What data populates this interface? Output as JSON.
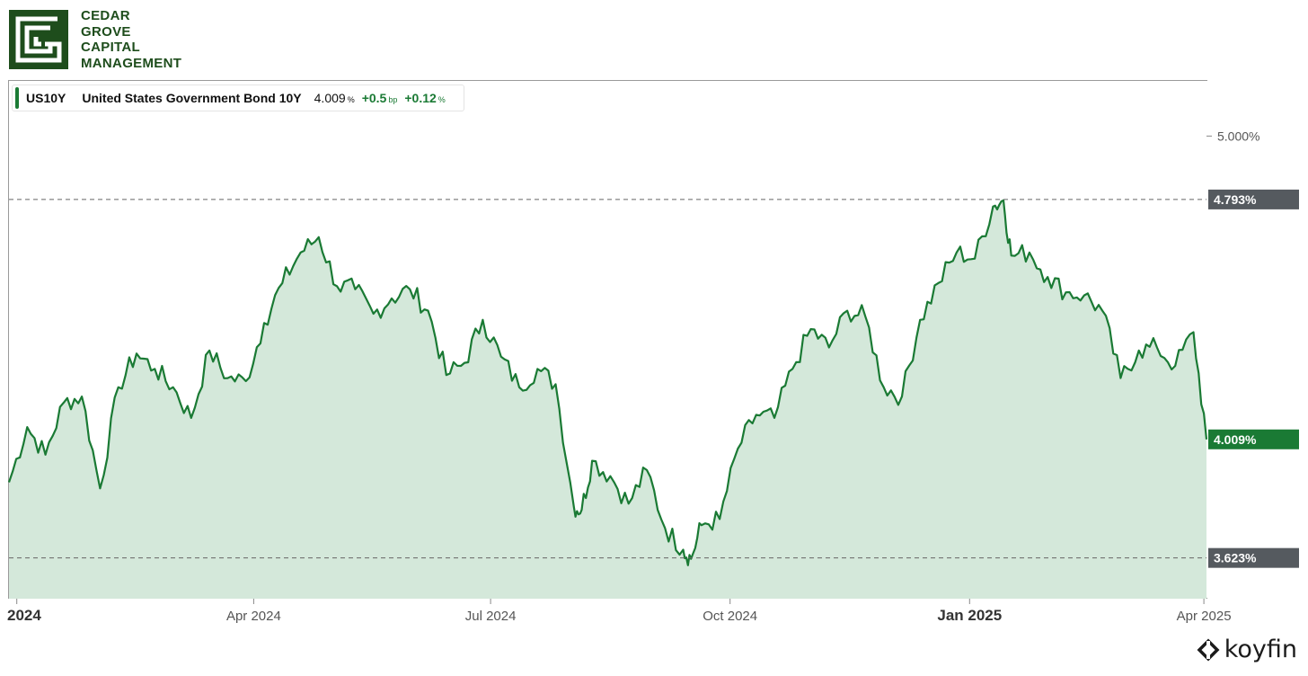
{
  "header": {
    "logo_lines": [
      "CEDAR",
      "GROVE",
      "CAPITAL",
      "MANAGEMENT"
    ],
    "brand_color": "#1e4d1c"
  },
  "legend": {
    "symbol": "US10Y",
    "name": "United States Government Bond 10Y",
    "price": "4.009",
    "price_unit": "%",
    "change_bp": "+0.5",
    "change_bp_unit": "bp",
    "change_pct": "+0.12",
    "change_pct_unit": "%"
  },
  "footer": {
    "brand": "koyfin"
  },
  "colors": {
    "line": "#1a7a34",
    "fill": "#d4e8da",
    "label_dark": "#555a5f",
    "label_current": "#1a7a34"
  },
  "chart_data": {
    "type": "area",
    "series": [
      {
        "name": "US10Y",
        "x": [
          "2023-12-29",
          "2024-01-05",
          "2024-01-12",
          "2024-01-19",
          "2024-01-26",
          "2024-02-02",
          "2024-02-09",
          "2024-02-16",
          "2024-02-23",
          "2024-03-01",
          "2024-03-08",
          "2024-03-15",
          "2024-03-22",
          "2024-03-29",
          "2024-04-05",
          "2024-04-12",
          "2024-04-19",
          "2024-04-26",
          "2024-05-03",
          "2024-05-10",
          "2024-05-17",
          "2024-05-24",
          "2024-05-31",
          "2024-06-07",
          "2024-06-14",
          "2024-06-21",
          "2024-06-28",
          "2024-07-05",
          "2024-07-12",
          "2024-07-19",
          "2024-07-26",
          "2024-08-02",
          "2024-08-05",
          "2024-08-09",
          "2024-08-16",
          "2024-08-23",
          "2024-08-30",
          "2024-09-06",
          "2024-09-13",
          "2024-09-16",
          "2024-09-20",
          "2024-09-27",
          "2024-10-04",
          "2024-10-11",
          "2024-10-18",
          "2024-10-25",
          "2024-11-01",
          "2024-11-08",
          "2024-11-15",
          "2024-11-22",
          "2024-11-29",
          "2024-12-06",
          "2024-12-13",
          "2024-12-20",
          "2024-12-27",
          "2025-01-03",
          "2025-01-10",
          "2025-01-14",
          "2025-01-17",
          "2025-01-24",
          "2025-01-31",
          "2025-02-07",
          "2025-02-14",
          "2025-02-21",
          "2025-02-28",
          "2025-03-07",
          "2025-03-14",
          "2025-03-21",
          "2025-03-28",
          "2025-04-02"
        ],
        "values": [
          3.87,
          4.05,
          3.96,
          4.13,
          4.15,
          3.85,
          4.18,
          4.29,
          4.24,
          4.18,
          4.08,
          4.3,
          4.21,
          4.2,
          4.39,
          4.52,
          4.62,
          4.67,
          4.51,
          4.5,
          4.42,
          4.47,
          4.5,
          4.43,
          4.22,
          4.26,
          4.4,
          4.28,
          4.18,
          4.24,
          4.19,
          3.79,
          3.78,
          3.94,
          3.89,
          3.8,
          3.91,
          3.72,
          3.65,
          3.62,
          3.73,
          3.75,
          3.98,
          4.09,
          4.08,
          4.24,
          4.37,
          4.31,
          4.43,
          4.41,
          4.18,
          4.15,
          4.4,
          4.52,
          4.62,
          4.6,
          4.77,
          4.79,
          4.61,
          4.62,
          4.54,
          4.49,
          4.48,
          4.43,
          4.21,
          4.3,
          4.31,
          4.25,
          4.36,
          4.01
        ]
      }
    ],
    "x_ticks": [
      "2024",
      "Apr 2024",
      "Jul 2024",
      "Oct 2024",
      "Jan 2025",
      "Apr 2025"
    ],
    "y_ticks": [
      "5.000%"
    ],
    "y_range": [
      3.49,
      5.18
    ],
    "reference_lines": [
      {
        "value": 4.793,
        "label": "4.793%"
      },
      {
        "value": 3.623,
        "label": "3.623%"
      }
    ],
    "current_label": "4.009%",
    "grid": false
  }
}
